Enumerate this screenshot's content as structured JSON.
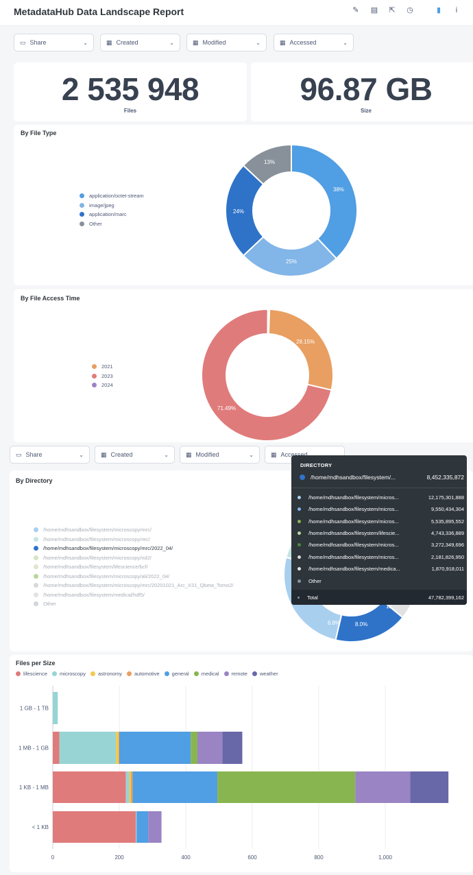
{
  "header": {
    "title": "MetadataHub Data Landscape Report",
    "icons": [
      "pencil-icon",
      "subscription-icon",
      "share-icon",
      "history-icon",
      "bookmark-icon",
      "info-icon"
    ]
  },
  "filters": {
    "share": "Share",
    "created": "Created",
    "modified": "Modified",
    "accessed": "Accessed"
  },
  "stats": {
    "files": {
      "value": "2 535 948",
      "label": "Files"
    },
    "size": {
      "value": "96.87 GB",
      "label": "Size"
    }
  },
  "file_type": {
    "title": "By File Type",
    "legend": [
      "application/octet-stream",
      "image/jpeg",
      "application/marc",
      "Other"
    ],
    "slice_labels": [
      "38%",
      "25%",
      "24%",
      "13%"
    ]
  },
  "access_time": {
    "title": "By File Access Time",
    "legend": [
      "2021",
      "2023",
      "2024"
    ],
    "slice_labels": [
      "28.15%",
      "71.49%"
    ]
  },
  "directory": {
    "title": "By Directory",
    "legend": [
      "/home/mdhsandbox/filesystem/microscopy/mrc/",
      "/home/mdhsandbox/filesystem/microscopy/rec/",
      "/home/mdhsandbox/filesystem/microscopy/mrc/2022_04/",
      "/home/mdhsandbox/filesystem/microscopy/nd2/",
      "/home/mdhsandbox/filesystem/lifescience/bcf/",
      "/home/mdhsandbox/filesystem/microscopy/ali/2022_04/",
      "/home/mdhsandbox/filesystem/microscopy/mrc/20201021_Arc_X31_Qbeta_Tomo2/",
      "/home/mdhsandbox/filesystem/medical/hdf5/",
      "Other"
    ],
    "slice_labels": [
      "6.8%",
      "8.0%",
      "12."
    ]
  },
  "tooltip": {
    "heading": "DIRECTORY",
    "highlight": {
      "name": "/home/mdhsandbox/filesystem/...",
      "value": "8,452,335,872"
    },
    "rows": [
      {
        "name": "/home/mdhsandbox/filesystem/micros...",
        "value": "12,175,301,888"
      },
      {
        "name": "/home/mdhsandbox/filesystem/micros...",
        "value": "9,550,434,304"
      },
      {
        "name": "/home/mdhsandbox/filesystem/micros...",
        "value": "5,535,895,552"
      },
      {
        "name": "/home/mdhsandbox/filesystem/lifescie...",
        "value": "4,743,336,889"
      },
      {
        "name": "/home/mdhsandbox/filesystem/micros...",
        "value": "3,272,349,696"
      },
      {
        "name": "/home/mdhsandbox/filesystem/micros...",
        "value": "2,181,826,950"
      },
      {
        "name": "/home/mdhsandbox/filesystem/medica...",
        "value": "1,870,918,011"
      },
      {
        "name": "Other",
        "value": ""
      }
    ],
    "total": {
      "name": "Total",
      "value": "47,782,399,162"
    }
  },
  "files_per_size": {
    "title": "Files per Size"
  },
  "chart_data": [
    {
      "type": "pie",
      "title": "By File Type",
      "labels": [
        "application/octet-stream",
        "image/jpeg",
        "application/marc",
        "Other"
      ],
      "values": [
        38,
        25,
        24,
        13
      ],
      "colors": [
        "#509ee3",
        "#82b5e8",
        "#2f73c9",
        "#88919a"
      ]
    },
    {
      "type": "pie",
      "title": "By File Access Time",
      "labels": [
        "2021",
        "2023",
        "2024"
      ],
      "values": [
        28.15,
        71.49,
        0.36
      ],
      "colors": [
        "#e89f61",
        "#e07b7b",
        "#9a84c3"
      ]
    },
    {
      "type": "bar",
      "title": "Files per Size",
      "orientation": "horizontal",
      "stacked": true,
      "categories": [
        "1 GB - 1 TB",
        "1 MB - 1 GB",
        "1 KB - 1 MB",
        "< 1 KB"
      ],
      "series": [
        {
          "name": "lifescience",
          "color": "#e07b7b",
          "values": [
            0,
            20,
            220,
            250
          ]
        },
        {
          "name": "microscopy",
          "color": "#98d4d4",
          "values": [
            15,
            170,
            10,
            2
          ]
        },
        {
          "name": "astronomy",
          "color": "#f2c94c",
          "values": [
            0,
            8,
            5,
            0
          ]
        },
        {
          "name": "automotive",
          "color": "#e89f61",
          "values": [
            0,
            2,
            5,
            0
          ]
        },
        {
          "name": "general",
          "color": "#509ee3",
          "values": [
            0,
            215,
            255,
            35
          ]
        },
        {
          "name": "medical",
          "color": "#88b550",
          "values": [
            0,
            20,
            415,
            0
          ]
        },
        {
          "name": "remote",
          "color": "#9a84c3",
          "values": [
            0,
            75,
            165,
            40
          ]
        },
        {
          "name": "weather",
          "color": "#6867a8",
          "values": [
            0,
            60,
            115,
            0
          ]
        }
      ],
      "xlim": [
        0,
        1200
      ],
      "xticks": [
        "0",
        "200",
        "400",
        "600",
        "800",
        "1,000"
      ]
    }
  ]
}
